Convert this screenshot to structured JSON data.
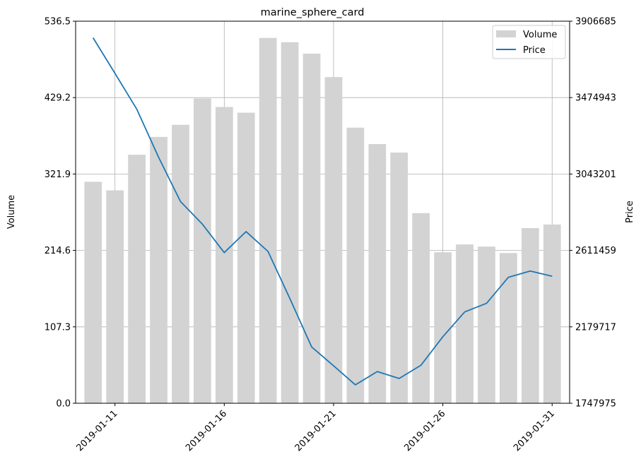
{
  "chart_data": {
    "type": "bar",
    "title": "marine_sphere_card",
    "xlabel": "",
    "ylabel": "Volume",
    "y2label": "Price",
    "grid": true,
    "legend_position": "top-right",
    "x": [
      "2019-01-10",
      "2019-01-11",
      "2019-01-12",
      "2019-01-13",
      "2019-01-14",
      "2019-01-15",
      "2019-01-16",
      "2019-01-17",
      "2019-01-18",
      "2019-01-19",
      "2019-01-20",
      "2019-01-21",
      "2019-01-22",
      "2019-01-23",
      "2019-01-24",
      "2019-01-25",
      "2019-01-26",
      "2019-01-27",
      "2019-01-28",
      "2019-01-29",
      "2019-01-30",
      "2019-01-31"
    ],
    "x_ticks": [
      "2019-01-11",
      "2019-01-16",
      "2019-01-21",
      "2019-01-26",
      "2019-01-31"
    ],
    "y_ticks": [
      "0.0",
      "107.3",
      "214.6",
      "321.9",
      "429.2",
      "536.5"
    ],
    "y2_ticks": [
      "1747975",
      "2179717",
      "2611459",
      "3043201",
      "3474943",
      "3906685"
    ],
    "ylim": [
      0,
      536.5
    ],
    "y2lim": [
      1747975,
      3906685
    ],
    "series": [
      {
        "name": "Volume",
        "type": "bar",
        "axis": "left",
        "color": "#d3d3d3",
        "values": [
          311,
          299,
          349,
          374,
          391,
          428,
          416,
          408,
          513,
          507,
          491,
          458,
          387,
          364,
          352,
          267,
          212,
          223,
          220,
          211,
          246,
          251
        ]
      },
      {
        "name": "Price",
        "type": "line",
        "axis": "right",
        "color": "#1f77b4",
        "values": [
          3813000,
          3612000,
          3409000,
          3137000,
          2887000,
          2760000,
          2599000,
          2718000,
          2606000,
          2340000,
          2066000,
          1960000,
          1852000,
          1927000,
          1888000,
          1963000,
          2124000,
          2264000,
          2313000,
          2460000,
          2495000,
          2466000
        ]
      }
    ]
  }
}
